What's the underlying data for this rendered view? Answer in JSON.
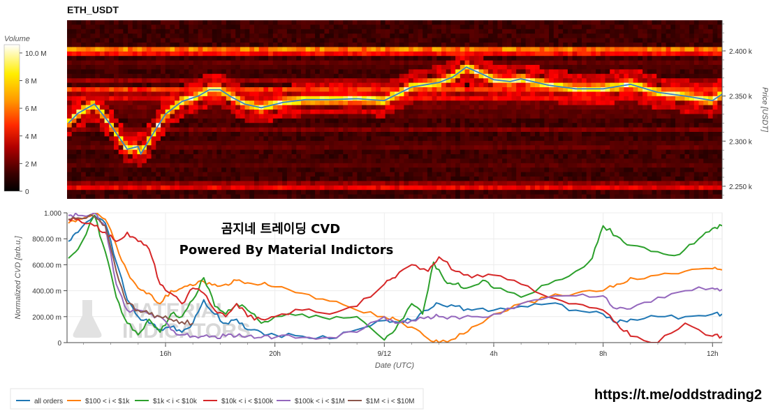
{
  "heatmap_title": "ETH_USDT",
  "colorbar": {
    "title": "Volume",
    "ticks": [
      "10.0 M",
      "8 M",
      "6 M",
      "4 M",
      "2 M",
      "0"
    ],
    "tick_values": [
      10,
      8,
      6,
      4,
      2,
      0
    ],
    "range": [
      0,
      10.6
    ]
  },
  "price_axis": {
    "label": "Price [USDT]",
    "ticks": [
      "2.400 k",
      "2.350 k",
      "2.300 k",
      "2.250 k"
    ],
    "tick_values": [
      2400,
      2350,
      2300,
      2250
    ],
    "range": [
      2236,
      2434
    ]
  },
  "cvd_axis": {
    "label": "Normalized CVD [arb.u.]",
    "ticks": [
      "1.000",
      "800.00 m",
      "600.00 m",
      "400.00 m",
      "200.00 m",
      "0"
    ],
    "tick_values": [
      1,
      0.8,
      0.6,
      0.4,
      0.2,
      0
    ],
    "range": [
      0,
      1
    ]
  },
  "time_axis": {
    "label": "Date (UTC)",
    "ticks": [
      "16h",
      "20h",
      "9/12",
      "4h",
      "8h",
      "12h"
    ],
    "tick_values": [
      16,
      20,
      24,
      28,
      32,
      36
    ],
    "range": [
      12.4,
      36.35
    ]
  },
  "overlay": {
    "title": "곰지네 트레이딩 CVD",
    "subtitle": "Powered By Material Indictors"
  },
  "watermark": {
    "line1": "MATERIAL",
    "line2": "INDICATORS"
  },
  "link": "https://t.me/oddstrading2",
  "legend": [
    {
      "label": "all orders",
      "color": "#1f77b4"
    },
    {
      "label": "$100 < i < $1k",
      "color": "#ff7f0e"
    },
    {
      "label": "$1k < i < $10k",
      "color": "#2ca02c"
    },
    {
      "label": "$10k < i < $100k",
      "color": "#d62728"
    },
    {
      "label": "$100k < i < $1M",
      "color": "#9467bd"
    },
    {
      "label": "$1M < i < $10M",
      "color": "#8c564b"
    }
  ],
  "chart_data": [
    {
      "type": "heatmap",
      "title": "ETH_USDT",
      "xlabel": "",
      "ylabel": "Price [USDT]",
      "ylim": [
        2236,
        2434
      ],
      "colorscale": "hot",
      "colorbar_title": "Volume",
      "zlim": [
        0,
        10.6
      ],
      "bands": [
        {
          "price": 2400,
          "volume": 9.0
        },
        {
          "price": 2385,
          "volume": 2.5
        },
        {
          "price": 2368,
          "volume": 3.0
        },
        {
          "price": 2356,
          "volume": 6.5
        },
        {
          "price": 2348,
          "volume": 4.5
        },
        {
          "price": 2340,
          "volume": 3.2
        },
        {
          "price": 2330,
          "volume": 2.6
        },
        {
          "price": 2312,
          "volume": 2.4
        },
        {
          "price": 2295,
          "volume": 2.6
        },
        {
          "price": 2275,
          "volume": 2.2
        },
        {
          "price": 2250,
          "volume": 5.5
        }
      ],
      "price_line": {
        "x": [
          12.45,
          12.8,
          13.4,
          13.9,
          14.4,
          14.6,
          15.0,
          15.1,
          15.6,
          16.0,
          16.6,
          17.2,
          17.6,
          18.0,
          18.4,
          18.9,
          19.5,
          20.3,
          21.1,
          22.0,
          23.0,
          24.0,
          25.0,
          26.0,
          26.5,
          27.0,
          27.6,
          28.0,
          28.6,
          29.0,
          30.0,
          31.0,
          32.0,
          33.0,
          34.0,
          35.0,
          36.0,
          36.35
        ],
        "y": [
          2320,
          2331,
          2341,
          2322,
          2300,
          2291,
          2294,
          2286,
          2311,
          2330,
          2344,
          2350,
          2357,
          2357,
          2349,
          2341,
          2337,
          2343,
          2346,
          2346,
          2347,
          2345,
          2360,
          2365,
          2371,
          2382,
          2374,
          2368,
          2366,
          2369,
          2362,
          2358,
          2358,
          2363,
          2354,
          2350,
          2345,
          2352
        ]
      }
    },
    {
      "type": "line",
      "title": "곰지네 트레이딩 CVD",
      "subtitle": "Powered By Material Indictors",
      "xlabel": "Date (UTC)",
      "ylabel": "Normalized CVD [arb.u.]",
      "ylim": [
        0,
        1
      ],
      "xlim": [
        12.4,
        36.35
      ],
      "series": [
        {
          "name": "all orders",
          "x": [
            12.45,
            12.8,
            13.4,
            13.8,
            14.2,
            14.6,
            15.0,
            15.4,
            15.8,
            16.2,
            16.6,
            17.0,
            17.4,
            17.8,
            18.2,
            18.6,
            19.0,
            19.5,
            20.0,
            21.0,
            22.0,
            23.0,
            24.0,
            24.4,
            25.0,
            25.6,
            26.0,
            26.6,
            27.2,
            28.0,
            29.0,
            30.0,
            31.0,
            32.0,
            32.5,
            33.0,
            34.0,
            35.0,
            36.0,
            36.35
          ],
          "y": [
            0.78,
            0.85,
            0.98,
            0.92,
            0.62,
            0.33,
            0.2,
            0.15,
            0.1,
            0.12,
            0.08,
            0.15,
            0.33,
            0.22,
            0.15,
            0.18,
            0.1,
            0.08,
            0.06,
            0.05,
            0.03,
            0.1,
            0.17,
            0.16,
            0.17,
            0.25,
            0.3,
            0.28,
            0.25,
            0.25,
            0.28,
            0.3,
            0.25,
            0.22,
            0.15,
            0.18,
            0.2,
            0.2,
            0.22,
            0.22
          ]
        },
        {
          "name": "$100 < i < $1k",
          "x": [
            12.45,
            12.8,
            13.4,
            13.8,
            14.2,
            14.6,
            15.0,
            15.4,
            15.8,
            16.2,
            16.6,
            17.0,
            17.4,
            17.8,
            18.2,
            18.6,
            19.0,
            19.5,
            20.0,
            21.0,
            22.0,
            23.0,
            24.0,
            24.4,
            25.0,
            25.6,
            26.0,
            26.6,
            27.2,
            28.0,
            29.0,
            30.0,
            31.0,
            32.0,
            32.5,
            33.0,
            34.0,
            35.0,
            36.0,
            36.35
          ],
          "y": [
            0.92,
            0.95,
            1.0,
            0.95,
            0.75,
            0.55,
            0.42,
            0.38,
            0.3,
            0.4,
            0.42,
            0.44,
            0.47,
            0.45,
            0.45,
            0.48,
            0.46,
            0.45,
            0.43,
            0.38,
            0.32,
            0.25,
            0.2,
            0.18,
            0.12,
            0.03,
            0.0,
            0.03,
            0.12,
            0.22,
            0.3,
            0.35,
            0.38,
            0.4,
            0.45,
            0.5,
            0.52,
            0.55,
            0.57,
            0.56
          ]
        },
        {
          "name": "$1k < i < $10k",
          "x": [
            12.45,
            12.8,
            13.4,
            13.8,
            14.2,
            14.6,
            15.0,
            15.4,
            15.8,
            16.2,
            16.6,
            17.0,
            17.4,
            17.8,
            18.2,
            18.6,
            19.0,
            19.5,
            20.0,
            21.0,
            22.0,
            23.0,
            24.0,
            24.4,
            25.0,
            25.4,
            25.8,
            26.2,
            26.6,
            27.0,
            27.6,
            28.0,
            29.0,
            30.0,
            31.0,
            31.6,
            32.0,
            32.5,
            33.0,
            34.0,
            34.8,
            35.5,
            36.0,
            36.35
          ],
          "y": [
            0.65,
            0.72,
            0.98,
            0.7,
            0.35,
            0.15,
            0.06,
            0.18,
            0.08,
            0.22,
            0.2,
            0.33,
            0.5,
            0.28,
            0.22,
            0.3,
            0.25,
            0.15,
            0.2,
            0.22,
            0.18,
            0.2,
            0.02,
            0.1,
            0.3,
            0.22,
            0.62,
            0.48,
            0.45,
            0.42,
            0.48,
            0.42,
            0.35,
            0.45,
            0.55,
            0.65,
            0.9,
            0.82,
            0.75,
            0.7,
            0.68,
            0.8,
            0.88,
            0.9
          ]
        },
        {
          "name": "$10k < i < $100k",
          "x": [
            12.45,
            12.8,
            13.4,
            13.8,
            14.2,
            14.6,
            15.0,
            15.4,
            15.8,
            16.2,
            16.6,
            17.0,
            17.4,
            17.8,
            18.2,
            18.6,
            19.0,
            19.5,
            20.0,
            21.0,
            22.0,
            23.0,
            24.0,
            24.4,
            25.0,
            25.6,
            26.0,
            26.6,
            27.2,
            28.0,
            29.0,
            30.0,
            31.0,
            32.0,
            32.5,
            33.0,
            34.0,
            35.0,
            36.0,
            36.35
          ],
          "y": [
            0.95,
            0.95,
            0.9,
            0.85,
            0.78,
            0.85,
            0.78,
            0.72,
            0.45,
            0.38,
            0.3,
            0.42,
            0.38,
            0.25,
            0.2,
            0.3,
            0.2,
            0.18,
            0.2,
            0.25,
            0.22,
            0.28,
            0.45,
            0.5,
            0.6,
            0.55,
            0.66,
            0.55,
            0.5,
            0.52,
            0.45,
            0.35,
            0.3,
            0.25,
            0.15,
            0.05,
            0.0,
            0.15,
            0.05,
            0.05
          ]
        },
        {
          "name": "$100k < i < $1M",
          "x": [
            12.45,
            12.8,
            13.4,
            13.8,
            14.2,
            14.6,
            15.0,
            15.4,
            15.8,
            16.2,
            16.6,
            17.0,
            17.4,
            17.8,
            18.2,
            18.6,
            19.0,
            19.5,
            20.0,
            21.0,
            22.0,
            23.0,
            24.0,
            24.4,
            25.0,
            25.6,
            26.0,
            26.6,
            27.2,
            28.0,
            29.0,
            30.0,
            31.0,
            32.0,
            32.5,
            33.0,
            34.0,
            35.0,
            36.0,
            36.35
          ],
          "y": [
            0.98,
            0.98,
            1.0,
            0.9,
            0.45,
            0.25,
            0.25,
            0.22,
            0.2,
            0.1,
            0.06,
            0.05,
            0.05,
            0.05,
            0.05,
            0.05,
            0.05,
            0.04,
            0.04,
            0.04,
            0.04,
            0.08,
            0.2,
            0.15,
            0.17,
            0.2,
            0.2,
            0.2,
            0.2,
            0.22,
            0.3,
            0.35,
            0.36,
            0.36,
            0.26,
            0.26,
            0.35,
            0.4,
            0.42,
            0.41
          ]
        },
        {
          "name": "$1M < i < $10M",
          "x": [
            12.45,
            12.8,
            13.4,
            13.8,
            14.2,
            14.6,
            15.0,
            15.4,
            15.8,
            16.2,
            16.6,
            17.0
          ],
          "y": [
            0.95,
            0.96,
            0.97,
            0.9,
            0.55,
            0.3,
            0.25,
            0.22,
            0.2,
            0.18,
            0.16,
            0.15
          ]
        }
      ]
    }
  ]
}
